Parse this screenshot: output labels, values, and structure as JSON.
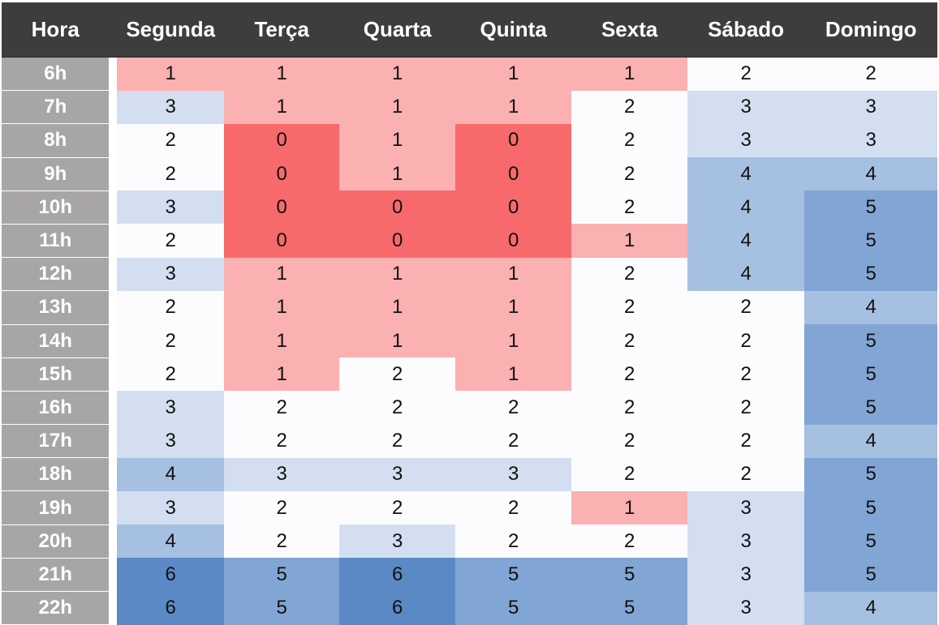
{
  "chart_data": {
    "type": "heatmap",
    "corner_header": "Hora",
    "columns": [
      "Segunda",
      "Terça",
      "Quarta",
      "Quinta",
      "Sexta",
      "Sábado",
      "Domingo"
    ],
    "rows": [
      "6h",
      "7h",
      "8h",
      "9h",
      "10h",
      "11h",
      "12h",
      "13h",
      "14h",
      "15h",
      "16h",
      "17h",
      "18h",
      "19h",
      "20h",
      "21h",
      "22h"
    ],
    "values": [
      [
        1,
        1,
        1,
        1,
        1,
        2,
        2
      ],
      [
        3,
        1,
        1,
        1,
        2,
        3,
        3
      ],
      [
        2,
        0,
        1,
        0,
        2,
        3,
        3
      ],
      [
        2,
        0,
        1,
        0,
        2,
        4,
        4
      ],
      [
        3,
        0,
        0,
        0,
        2,
        4,
        5
      ],
      [
        2,
        0,
        0,
        0,
        1,
        4,
        5
      ],
      [
        3,
        1,
        1,
        1,
        2,
        4,
        5
      ],
      [
        2,
        1,
        1,
        1,
        2,
        2,
        4
      ],
      [
        2,
        1,
        1,
        1,
        2,
        2,
        5
      ],
      [
        2,
        1,
        2,
        1,
        2,
        2,
        5
      ],
      [
        3,
        2,
        2,
        2,
        2,
        2,
        5
      ],
      [
        3,
        2,
        2,
        2,
        2,
        2,
        4
      ],
      [
        4,
        3,
        3,
        3,
        2,
        2,
        5
      ],
      [
        3,
        2,
        2,
        2,
        1,
        3,
        5
      ],
      [
        4,
        2,
        3,
        2,
        2,
        3,
        5
      ],
      [
        6,
        5,
        6,
        5,
        5,
        3,
        5
      ],
      [
        6,
        5,
        6,
        5,
        5,
        3,
        4
      ]
    ],
    "color_scale": {
      "0": "#f8696b",
      "1": "#fbb0b2",
      "2": "#fcfcff",
      "3": "#d3dff0",
      "4": "#a6c0e2",
      "5": "#81a5d4",
      "6": "#5a89c6"
    },
    "grid": false,
    "legend": "none"
  }
}
